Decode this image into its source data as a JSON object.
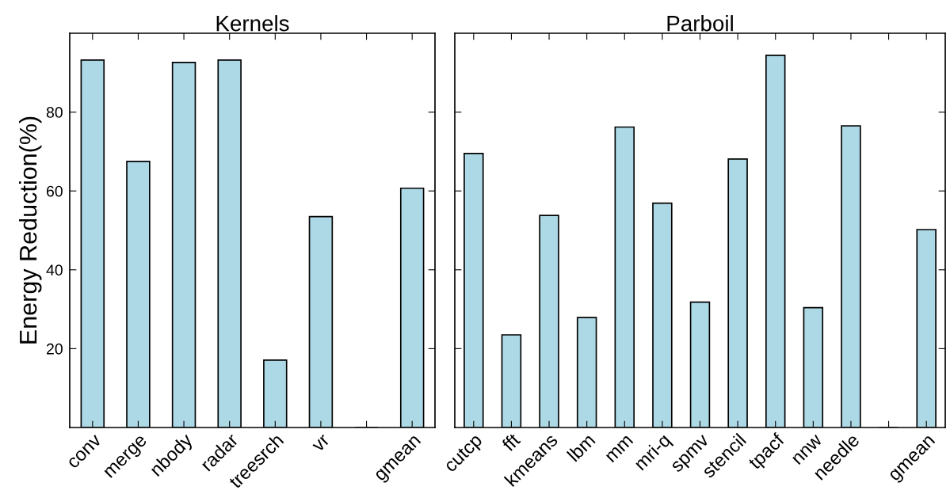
{
  "chart_data": [
    {
      "type": "bar",
      "title": "Kernels",
      "ylabel": "Energy Reduction(%)",
      "categories": [
        "conv",
        "merge",
        "nbody",
        "radar",
        "treesrch",
        "vr",
        null,
        "gmean"
      ],
      "values": [
        93.2,
        67.5,
        92.6,
        93.2,
        17.1,
        53.5,
        0,
        60.7
      ],
      "color": "#add8e6",
      "ylim": [
        0,
        100
      ],
      "yticks": [
        20,
        40,
        60,
        80
      ],
      "grid": false
    },
    {
      "type": "bar",
      "title": "Parboil",
      "categories": [
        "cutcp",
        "fft",
        "kmeans",
        "lbm",
        "mm",
        "mri-q",
        "spmv",
        "stencil",
        "tpacf",
        "nnw",
        "needle",
        null,
        "gmean"
      ],
      "values": [
        69.5,
        23.5,
        53.8,
        27.9,
        76.2,
        56.9,
        31.8,
        68.1,
        94.4,
        30.4,
        76.5,
        0,
        50.2
      ],
      "color": "#add8e6",
      "ylim": [
        0,
        100
      ],
      "yticks": [
        20,
        40,
        60,
        80
      ],
      "tick_labels": "x",
      "grid": false
    }
  ]
}
